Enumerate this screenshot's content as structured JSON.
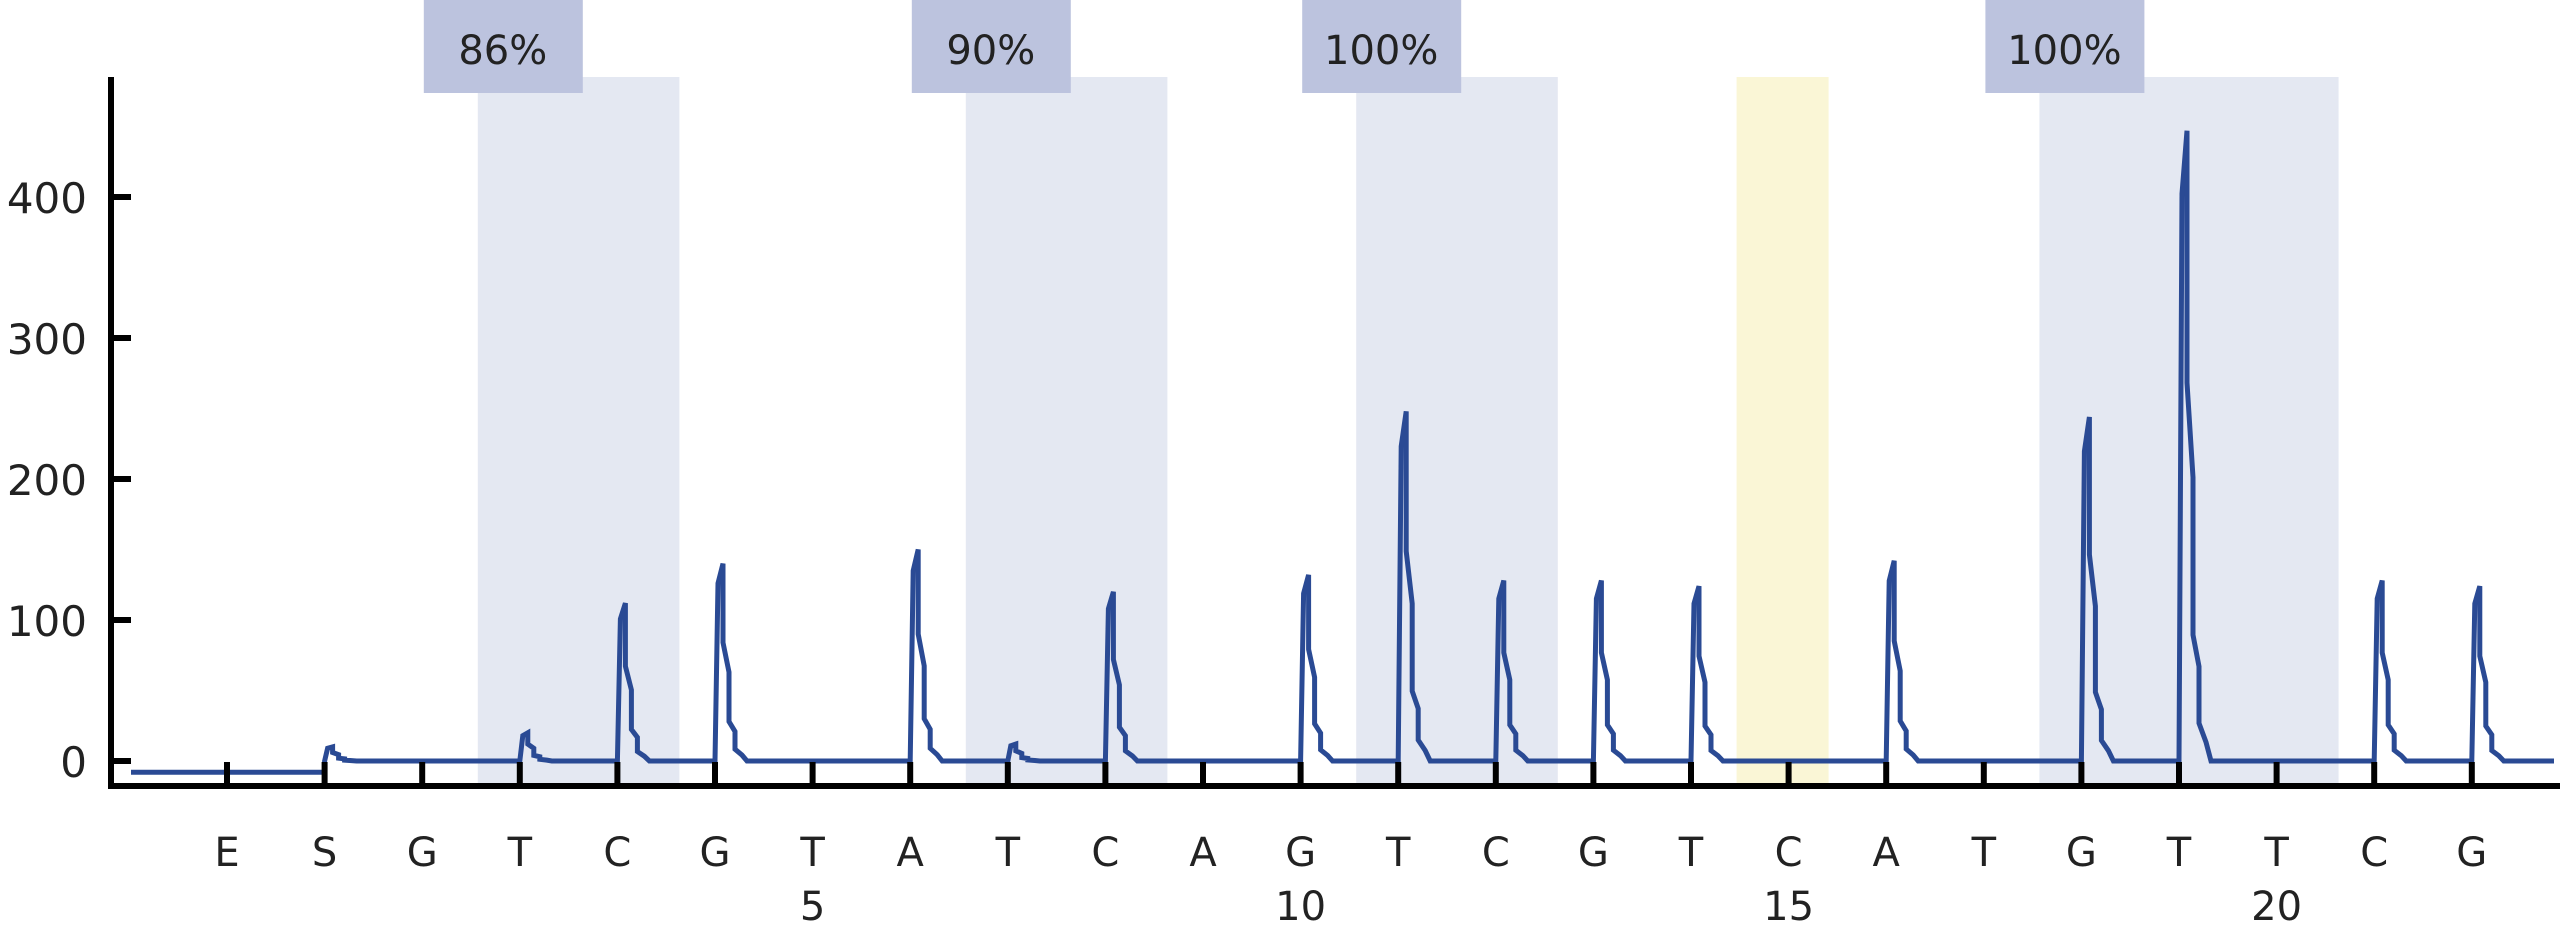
{
  "chart_data": {
    "type": "line",
    "title": "",
    "xlabel": "",
    "ylabel": "",
    "ylim": [
      -20,
      540
    ],
    "yticks": [
      0,
      100,
      200,
      300,
      400
    ],
    "dispensation": [
      "E",
      "S",
      "G",
      "T",
      "C",
      "G",
      "T",
      "A",
      "T",
      "C",
      "A",
      "G",
      "T",
      "C",
      "G",
      "T",
      "C",
      "A",
      "T",
      "G",
      "T",
      "T",
      "C",
      "G"
    ],
    "values": [
      -8,
      10,
      0,
      20,
      112,
      140,
      0,
      150,
      12,
      120,
      0,
      132,
      248,
      128,
      128,
      124,
      3,
      142,
      0,
      244,
      447,
      0,
      128,
      124
    ],
    "position_labels": [
      {
        "index": 6,
        "label": "5"
      },
      {
        "index": 11,
        "label": "10"
      },
      {
        "index": 16,
        "label": "15"
      },
      {
        "index": 21,
        "label": "20"
      }
    ],
    "variable_regions": [
      {
        "label": "86%",
        "from": 3,
        "to": 4
      },
      {
        "label": "90%",
        "from": 8,
        "to": 9
      },
      {
        "label": "100%",
        "from": 12,
        "to": 13
      },
      {
        "label": "100%",
        "from": 19,
        "to": 21
      }
    ],
    "reference_highlight": {
      "index": 16
    },
    "colors": {
      "line": "#2a4a94",
      "region": "#e4e8f2",
      "region_label": "#bcc3de",
      "highlight": "#faf6d6",
      "axis": "#000000"
    }
  }
}
